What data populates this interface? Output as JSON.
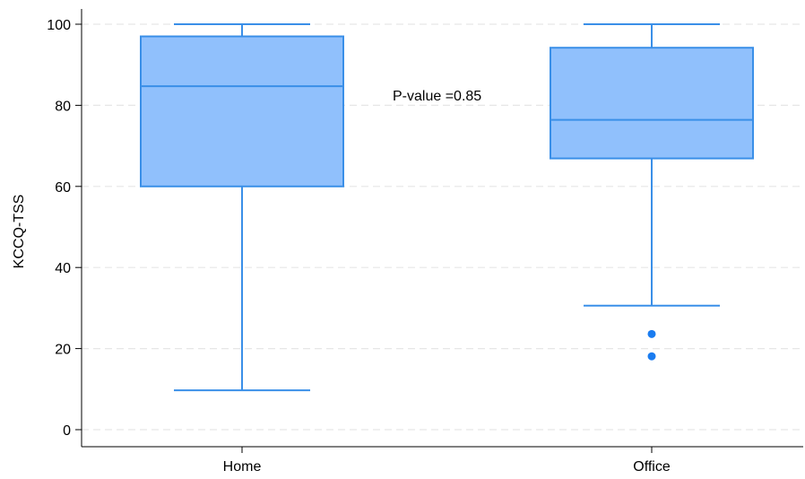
{
  "chart_data": {
    "type": "box",
    "ylabel": "KCCQ-TSS",
    "xlabel": "",
    "ylim": [
      0,
      100
    ],
    "yticks": [
      0,
      20,
      40,
      60,
      80,
      100
    ],
    "grid": true,
    "categories": [
      "Home",
      "Office"
    ],
    "boxes": [
      {
        "category": "Home",
        "whisker_low": 9.7,
        "q1": 60,
        "median": 84.7,
        "q3": 97,
        "whisker_high": 100,
        "outliers": []
      },
      {
        "category": "Office",
        "whisker_low": 30.6,
        "q1": 66.9,
        "median": 76.4,
        "q3": 94.2,
        "whisker_high": 100,
        "outliers": [
          23.6,
          18.1
        ]
      }
    ],
    "annotation": "P-value =0.85",
    "colors": {
      "box_fill": "#90c0fc",
      "box_stroke": "#3a8fe8",
      "outlier": "#1a7cf0",
      "grid": "#e6e6e6"
    }
  }
}
